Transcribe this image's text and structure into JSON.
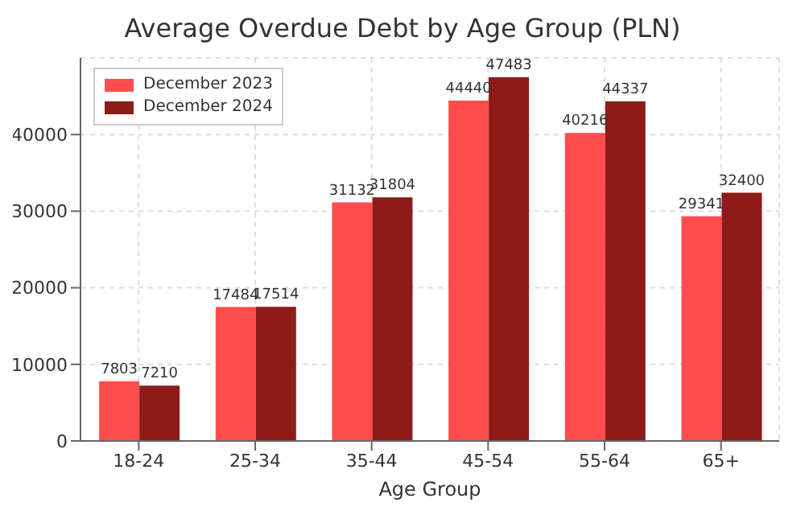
{
  "chart_data": {
    "type": "bar",
    "title": "Average Overdue Debt by Age Group (PLN)",
    "xlabel": "Age Group",
    "categories": [
      "18-24",
      "25-34",
      "35-44",
      "45-54",
      "55-64",
      "65+"
    ],
    "series": [
      {
        "name": "December 2023",
        "color": "#ff4d4d",
        "values": [
          7803,
          17484,
          31132,
          44440,
          40216,
          29341
        ]
      },
      {
        "name": "December 2024",
        "color": "#8f1a1a",
        "values": [
          7210,
          17514,
          31804,
          47483,
          44337,
          32400
        ]
      }
    ],
    "ylim": [
      0,
      50000
    ],
    "yticks": [
      0,
      10000,
      20000,
      30000,
      40000
    ],
    "grid": true,
    "legend": "top left",
    "data_labels": true
  }
}
